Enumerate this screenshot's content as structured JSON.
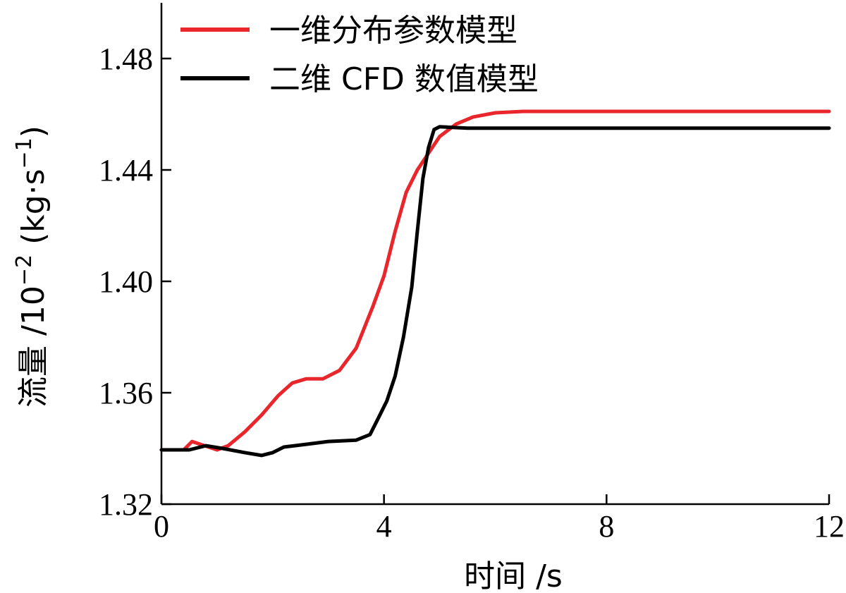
{
  "chart_data": {
    "type": "line",
    "xlabel": "时间 /s",
    "ylabel": "流量 /10",
    "ylabel_exp": "−2",
    "ylabel_unit": " (kg·s",
    "ylabel_unit_exp": "−1",
    "ylabel_close": ")",
    "xlim": [
      0,
      12
    ],
    "ylim": [
      1.32,
      1.5
    ],
    "x_ticks": [
      0,
      4,
      8,
      12
    ],
    "x_tick_labels": [
      "0",
      "4",
      "8",
      "12"
    ],
    "y_ticks": [
      1.32,
      1.36,
      1.4,
      1.44,
      1.48
    ],
    "y_tick_labels": [
      "1.32",
      "1.36",
      "1.40",
      "1.44",
      "1.48"
    ],
    "legend_position": "top",
    "series": [
      {
        "name": "一维分布参数模型",
        "color": "#e8262c",
        "points": [
          [
            0,
            1.3395
          ],
          [
            0.4,
            1.3395
          ],
          [
            0.55,
            1.3425
          ],
          [
            0.7,
            1.3415
          ],
          [
            1.0,
            1.3395
          ],
          [
            1.2,
            1.341
          ],
          [
            1.5,
            1.346
          ],
          [
            1.8,
            1.352
          ],
          [
            2.1,
            1.359
          ],
          [
            2.35,
            1.3635
          ],
          [
            2.6,
            1.365
          ],
          [
            2.9,
            1.365
          ],
          [
            3.2,
            1.368
          ],
          [
            3.5,
            1.376
          ],
          [
            3.8,
            1.391
          ],
          [
            4.0,
            1.402
          ],
          [
            4.2,
            1.418
          ],
          [
            4.4,
            1.432
          ],
          [
            4.6,
            1.44
          ],
          [
            4.8,
            1.446
          ],
          [
            5.0,
            1.452
          ],
          [
            5.3,
            1.4565
          ],
          [
            5.6,
            1.459
          ],
          [
            6.0,
            1.4605
          ],
          [
            6.5,
            1.461
          ],
          [
            8.0,
            1.461
          ],
          [
            12,
            1.461
          ]
        ]
      },
      {
        "name": "二维 CFD 数值模型",
        "color": "#000000",
        "points": [
          [
            0,
            1.3395
          ],
          [
            0.5,
            1.3395
          ],
          [
            0.8,
            1.341
          ],
          [
            1.1,
            1.34
          ],
          [
            1.5,
            1.3385
          ],
          [
            1.8,
            1.3375
          ],
          [
            2.0,
            1.3385
          ],
          [
            2.2,
            1.3405
          ],
          [
            2.6,
            1.3415
          ],
          [
            3.0,
            1.3425
          ],
          [
            3.5,
            1.343
          ],
          [
            3.75,
            1.345
          ],
          [
            3.9,
            1.351
          ],
          [
            4.05,
            1.357
          ],
          [
            4.2,
            1.366
          ],
          [
            4.35,
            1.38
          ],
          [
            4.5,
            1.398
          ],
          [
            4.6,
            1.418
          ],
          [
            4.7,
            1.437
          ],
          [
            4.8,
            1.448
          ],
          [
            4.9,
            1.4545
          ],
          [
            5.0,
            1.4555
          ],
          [
            5.5,
            1.455
          ],
          [
            8.0,
            1.455
          ],
          [
            12,
            1.455
          ]
        ]
      }
    ]
  }
}
